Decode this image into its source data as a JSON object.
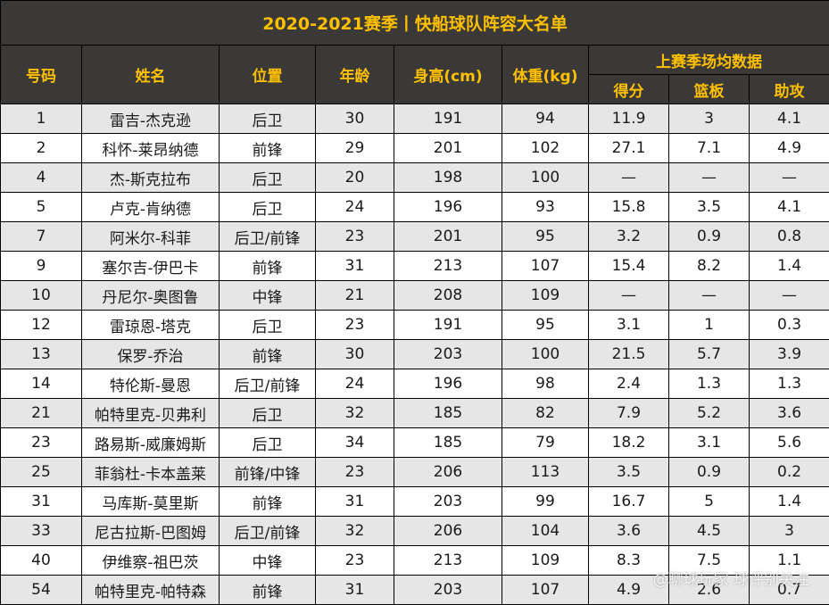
{
  "title": "2020-2021赛季丨快船球队阵容大名单",
  "headers": {
    "number": "号码",
    "name": "姓名",
    "position": "位置",
    "age": "年龄",
    "height": "身高(cm)",
    "weight": "体重(kg)",
    "stats_group": "上赛季场均数据",
    "points": "得分",
    "rebounds": "篮板",
    "assists": "助攻"
  },
  "rows": [
    {
      "number": "1",
      "name": "雷吉-杰克逊",
      "position": "后卫",
      "age": "30",
      "height": "191",
      "weight": "94",
      "points": "11.9",
      "rebounds": "3",
      "assists": "4.1"
    },
    {
      "number": "2",
      "name": "科怀-莱昂纳德",
      "position": "前锋",
      "age": "29",
      "height": "201",
      "weight": "102",
      "points": "27.1",
      "rebounds": "7.1",
      "assists": "4.9"
    },
    {
      "number": "4",
      "name": "杰-斯克拉布",
      "position": "后卫",
      "age": "20",
      "height": "198",
      "weight": "100",
      "points": "—",
      "rebounds": "—",
      "assists": "—"
    },
    {
      "number": "5",
      "name": "卢克-肯纳德",
      "position": "后卫",
      "age": "24",
      "height": "196",
      "weight": "93",
      "points": "15.8",
      "rebounds": "3.5",
      "assists": "4.1"
    },
    {
      "number": "7",
      "name": "阿米尔-科菲",
      "position": "后卫/前锋",
      "age": "23",
      "height": "201",
      "weight": "95",
      "points": "3.2",
      "rebounds": "0.9",
      "assists": "0.8"
    },
    {
      "number": "9",
      "name": "塞尔吉-伊巴卡",
      "position": "前锋",
      "age": "31",
      "height": "213",
      "weight": "107",
      "points": "15.4",
      "rebounds": "8.2",
      "assists": "1.4"
    },
    {
      "number": "10",
      "name": "丹尼尔-奥图鲁",
      "position": "中锋",
      "age": "21",
      "height": "208",
      "weight": "109",
      "points": "—",
      "rebounds": "—",
      "assists": "—"
    },
    {
      "number": "12",
      "name": "雷琼恩-塔克",
      "position": "后卫",
      "age": "23",
      "height": "191",
      "weight": "95",
      "points": "3.1",
      "rebounds": "1",
      "assists": "0.3"
    },
    {
      "number": "13",
      "name": "保罗-乔治",
      "position": "前锋",
      "age": "30",
      "height": "203",
      "weight": "100",
      "points": "21.5",
      "rebounds": "5.7",
      "assists": "3.9"
    },
    {
      "number": "14",
      "name": "特伦斯-曼恩",
      "position": "后卫/前锋",
      "age": "24",
      "height": "196",
      "weight": "98",
      "points": "2.4",
      "rebounds": "1.3",
      "assists": "1.3"
    },
    {
      "number": "21",
      "name": "帕特里克-贝弗利",
      "position": "后卫",
      "age": "32",
      "height": "185",
      "weight": "82",
      "points": "7.9",
      "rebounds": "5.2",
      "assists": "3.6"
    },
    {
      "number": "23",
      "name": "路易斯-威廉姆斯",
      "position": "后卫",
      "age": "34",
      "height": "185",
      "weight": "79",
      "points": "18.2",
      "rebounds": "3.1",
      "assists": "5.6"
    },
    {
      "number": "25",
      "name": "菲翁杜-卡本盖莱",
      "position": "前锋/中锋",
      "age": "23",
      "height": "206",
      "weight": "113",
      "points": "3.5",
      "rebounds": "0.9",
      "assists": "0.2"
    },
    {
      "number": "31",
      "name": "马库斯-莫里斯",
      "position": "前锋",
      "age": "31",
      "height": "203",
      "weight": "99",
      "points": "16.7",
      "rebounds": "5",
      "assists": "1.4"
    },
    {
      "number": "33",
      "name": "尼古拉斯-巴图姆",
      "position": "后卫/前锋",
      "age": "32",
      "height": "206",
      "weight": "104",
      "points": "3.6",
      "rebounds": "4.5",
      "assists": "3"
    },
    {
      "number": "40",
      "name": "伊维察-祖巴茨",
      "position": "中锋",
      "age": "23",
      "height": "213",
      "weight": "109",
      "points": "8.3",
      "rebounds": "7.5",
      "assists": "1.1"
    },
    {
      "number": "54",
      "name": "帕特里克-帕特森",
      "position": "前锋",
      "age": "31",
      "height": "203",
      "weight": "107",
      "points": "4.9",
      "rebounds": "2.6",
      "assists": "0.7"
    }
  ],
  "watermark": "@聊球玩家 球评别关注"
}
